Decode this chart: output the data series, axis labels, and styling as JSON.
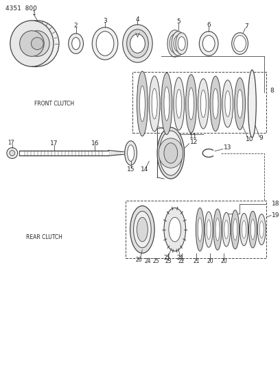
{
  "title": "4351  800",
  "bg_color": "#ffffff",
  "line_color": "#444444",
  "text_color": "#222222",
  "front_clutch_label": "FRONT CLUTCH",
  "rear_clutch_label": "REAR CLUTCH",
  "figsize": [
    4.08,
    5.33
  ],
  "dpi": 100
}
